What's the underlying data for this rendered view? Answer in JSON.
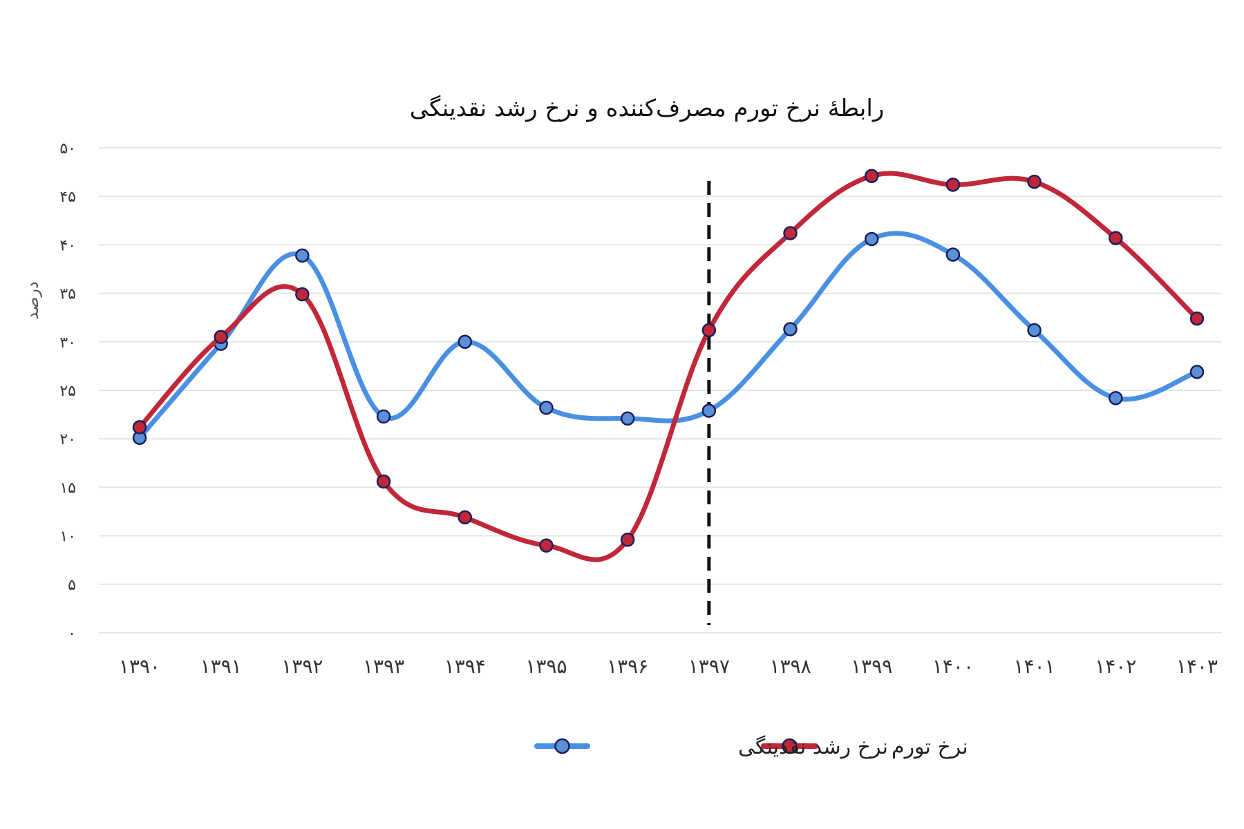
{
  "chart_data": {
    "type": "line",
    "title": "رابطهٔ نرخ تورم مصرف‌کننده و نرخ رشد نقدینگی",
    "ylabel": "درصد",
    "xlabel": "",
    "ylim": [
      0,
      50
    ],
    "yticks": [
      "۰",
      "۵",
      "۱۰",
      "۱۵",
      "۲۰",
      "۲۵",
      "۳۰",
      "۳۵",
      "۴۰",
      "۴۵",
      "۵۰"
    ],
    "categories": [
      "۱۳۹۰",
      "۱۳۹۱",
      "۱۳۹۲",
      "۱۳۹۳",
      "۱۳۹۴",
      "۱۳۹۵",
      "۱۳۹۶",
      "۱۳۹۷",
      "۱۳۹۸",
      "۱۳۹۹",
      "۱۴۰۰",
      "۱۴۰۱",
      "۱۴۰۲",
      "۱۴۰۳"
    ],
    "grid": true,
    "legend_position": "bottom",
    "marker_line": {
      "category": "۱۳۹۷",
      "style": "dashed",
      "color": "#111111"
    },
    "series": [
      {
        "name": "نرخ رشد نقدینگی",
        "color": "#4a90e2",
        "marker_color": "#5b8fd8",
        "values": [
          20.1,
          29.8,
          38.9,
          22.3,
          30.0,
          23.2,
          22.1,
          22.9,
          31.3,
          40.6,
          39.0,
          31.2,
          24.2,
          26.9
        ]
      },
      {
        "name": "نرخ تورم",
        "color": "#c0283a",
        "marker_color": "#c0283a",
        "values": [
          21.2,
          30.5,
          34.9,
          15.6,
          11.9,
          9.0,
          9.6,
          31.2,
          41.2,
          47.1,
          46.2,
          46.5,
          40.7,
          32.4
        ]
      }
    ],
    "legend": [
      {
        "label": "نرخ رشد نقدینگی",
        "color": "#4a90e2"
      },
      {
        "label": "نرخ تورم",
        "color": "#c0283a"
      }
    ]
  }
}
